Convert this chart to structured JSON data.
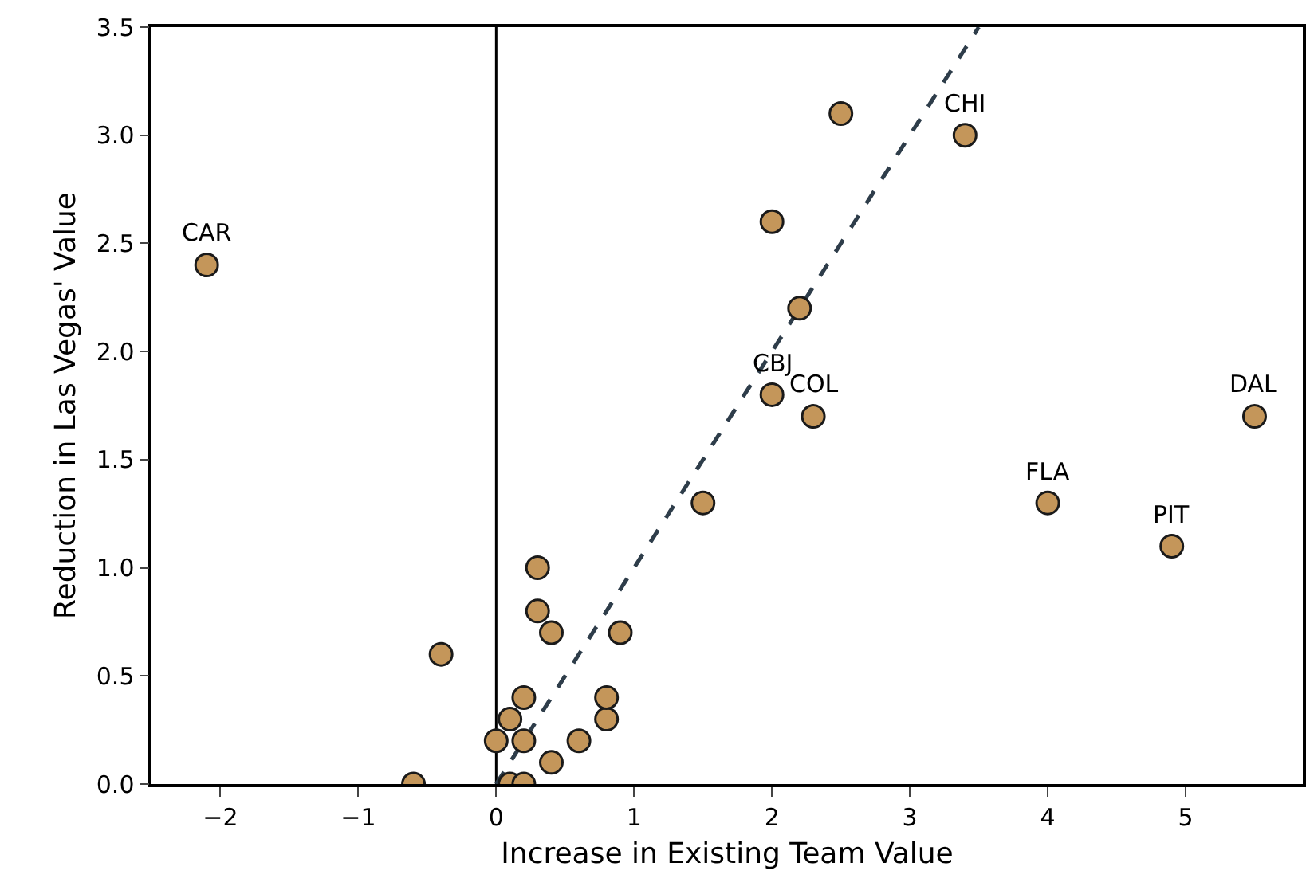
{
  "chart_data": {
    "type": "scatter",
    "xlabel": "Increase in Existing Team Value",
    "ylabel": "Reduction in Las Vegas' Value",
    "xlim": [
      -2.5,
      5.85
    ],
    "xticks": [
      {
        "value": -2,
        "label": "−2"
      },
      {
        "value": -1,
        "label": "−1"
      },
      0,
      1,
      2,
      3,
      4,
      5
    ],
    "ylim": [
      0,
      3.5
    ],
    "yticks": [
      {
        "value": 0,
        "label": "0.0"
      },
      0.5,
      {
        "value": 1,
        "label": "1.0"
      },
      1.5,
      {
        "value": 2,
        "label": "2.0"
      },
      2.5,
      {
        "value": 3,
        "label": "3.0"
      },
      3.5
    ],
    "grid": false,
    "marker": "circle",
    "series": [
      {
        "color": "#c4965a",
        "x": [
          -2.1,
          -0.4,
          -0.6,
          0,
          0.1,
          0.2,
          0.2,
          0.1,
          0.2,
          0.4,
          0.6,
          0.8,
          0.8,
          0.3,
          0.4,
          0.3,
          0.9,
          1.5,
          2.0,
          2.3,
          2.0,
          2.2,
          2.5,
          3.4,
          4.0,
          4.9,
          5.5
        ],
        "values": [
          2.4,
          0.6,
          0,
          0.2,
          0.3,
          0.4,
          0.2,
          0,
          0,
          0.1,
          0.2,
          0.3,
          0.4,
          0.8,
          0.7,
          1.0,
          0.7,
          1.3,
          1.8,
          1.7,
          2.6,
          2.2,
          3.1,
          3.0,
          1.3,
          1.1,
          1.7
        ]
      },
      {
        "type": "line",
        "color": "#2e3d4a",
        "line_style": "dashed",
        "marker": "none",
        "x": [
          0,
          3.5
        ],
        "values": [
          0,
          3.5
        ]
      }
    ],
    "ref_lines": [
      {
        "axis": "x",
        "value": 0,
        "color": "#000000"
      }
    ],
    "annotations": [
      {
        "text": "CAR",
        "x": -2.1,
        "y": 2.4
      },
      {
        "text": "CHI",
        "x": 3.4,
        "y": 3.0
      },
      {
        "text": "CBJ",
        "x": 2.0,
        "y": 1.8
      },
      {
        "text": "COL",
        "x": 2.3,
        "y": 1.7
      },
      {
        "text": "DAL",
        "x": 5.5,
        "y": 1.7
      },
      {
        "text": "FLA",
        "x": 4.0,
        "y": 1.3
      },
      {
        "text": "PIT",
        "x": 4.9,
        "y": 1.1
      }
    ]
  }
}
